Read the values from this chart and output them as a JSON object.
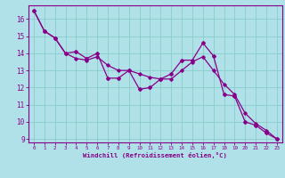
{
  "xlabel": "Windchill (Refroidissement éolien,°C)",
  "bg_color": "#b0e0e8",
  "grid_color": "#88cccc",
  "line_color": "#880088",
  "axis_color": "#880088",
  "x_values": [
    0,
    1,
    2,
    3,
    4,
    5,
    6,
    7,
    8,
    9,
    10,
    11,
    12,
    13,
    14,
    15,
    16,
    17,
    18,
    19,
    20,
    21,
    22,
    23
  ],
  "y_main": [
    16.5,
    15.3,
    14.9,
    14.0,
    14.1,
    13.7,
    14.0,
    12.55,
    12.55,
    13.0,
    11.9,
    12.0,
    12.5,
    12.8,
    13.6,
    13.6,
    14.6,
    13.85,
    11.6,
    11.5,
    10.0,
    9.8,
    9.35,
    9.0
  ],
  "y_trend": [
    16.5,
    15.3,
    14.9,
    14.0,
    13.7,
    13.6,
    13.8,
    13.3,
    13.0,
    13.0,
    12.8,
    12.6,
    12.5,
    12.5,
    13.0,
    13.5,
    13.8,
    13.0,
    12.2,
    11.6,
    10.5,
    9.9,
    9.5,
    9.0
  ],
  "ylim": [
    8.8,
    16.8
  ],
  "xlim": [
    -0.5,
    23.5
  ],
  "yticks": [
    9,
    10,
    11,
    12,
    13,
    14,
    15,
    16
  ],
  "xticks": [
    0,
    1,
    2,
    3,
    4,
    5,
    6,
    7,
    8,
    9,
    10,
    11,
    12,
    13,
    14,
    15,
    16,
    17,
    18,
    19,
    20,
    21,
    22,
    23
  ]
}
